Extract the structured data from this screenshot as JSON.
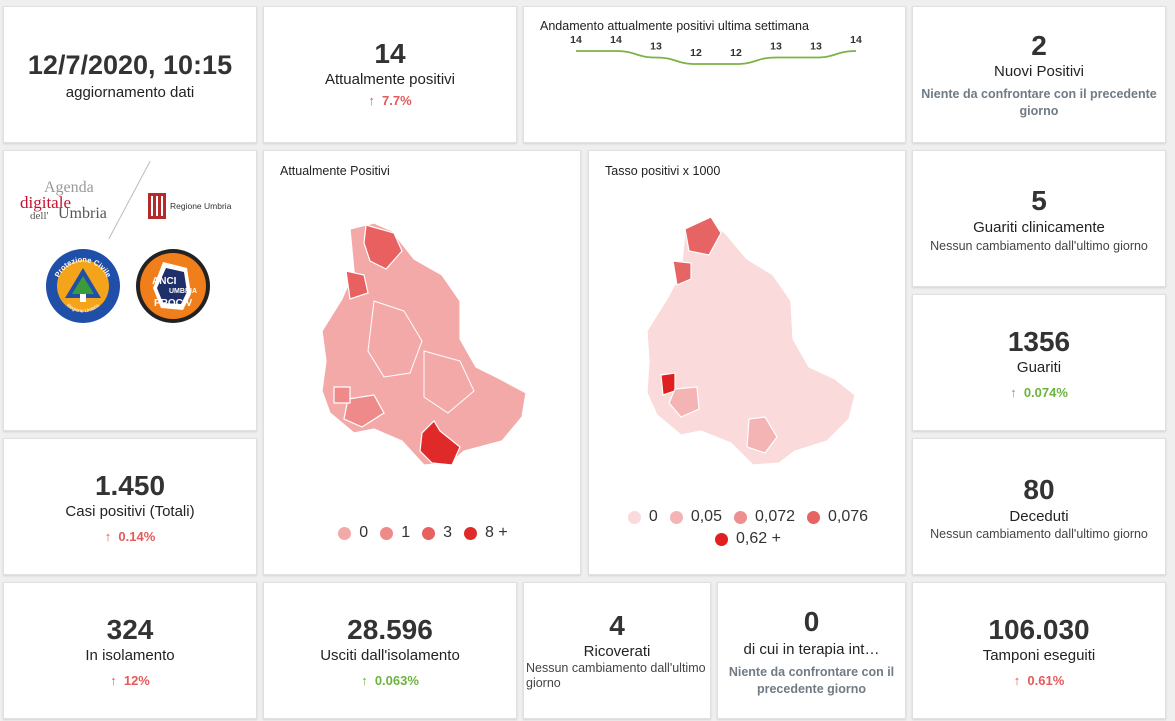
{
  "update": {
    "datetime": "12/7/2020, 10:15",
    "label": "aggiornamento dati"
  },
  "attualmente_positivi": {
    "value": "14",
    "label": "Attualmente positivi",
    "change": "7.7%"
  },
  "trend": {
    "title": "Andamento attualmente positivi ultima settimana",
    "chart_data": {
      "type": "line",
      "values": [
        14,
        14,
        13,
        12,
        12,
        13,
        13,
        14
      ],
      "labels": [
        "14",
        "14",
        "13",
        "12",
        "12",
        "13",
        "13",
        "14"
      ],
      "color": "#7cb342"
    }
  },
  "nuovi_positivi": {
    "value": "2",
    "label": "Nuovi Positivi",
    "note": "Niente da confrontare con il precedente giorno"
  },
  "logos": {
    "agenda_1": "Agenda",
    "agenda_2": "digitale",
    "agenda_3": "dell'",
    "agenda_4": "Umbria",
    "regione": "Regione Umbria",
    "protezione": "Protezione Civile",
    "protezione_sub": "Regione Umbria",
    "anci_1": "ANCI",
    "anci_2": "UMBRIA",
    "anci_3": "PROCIV"
  },
  "map_positivi": {
    "title": "Attualmente Positivi",
    "legend": [
      {
        "label": "0",
        "color": "#f4a9a9"
      },
      {
        "label": "1",
        "color": "#ee8a8a"
      },
      {
        "label": "3",
        "color": "#e86060"
      },
      {
        "label": "8 +",
        "color": "#e02a2a"
      }
    ]
  },
  "map_tasso": {
    "title": "Tasso positivi x 1000",
    "legend": [
      {
        "label": "0",
        "color": "#fadada"
      },
      {
        "label": "0,05",
        "color": "#f4b4b4"
      },
      {
        "label": "0,072",
        "color": "#ee8e8e"
      },
      {
        "label": "0,076",
        "color": "#e76464"
      },
      {
        "label": "0,62 +",
        "color": "#e02020"
      }
    ]
  },
  "guariti_clinicamente": {
    "value": "5",
    "label": "Guariti clinicamente",
    "note": "Nessun cambiamento dall'ultimo giorno"
  },
  "guariti": {
    "value": "1356",
    "label": "Guariti",
    "change": "0.074%"
  },
  "casi_totali": {
    "value": "1.450",
    "label": "Casi positivi (Totali)",
    "change": "0.14%"
  },
  "deceduti": {
    "value": "80",
    "label": "Deceduti",
    "note": "Nessun cambiamento dall'ultimo giorno"
  },
  "isolamento": {
    "value": "324",
    "label": "In isolamento",
    "change": "12%"
  },
  "usciti": {
    "value": "28.596",
    "label": "Usciti dall'isolamento",
    "change": "0.063%"
  },
  "ricoverati": {
    "value": "4",
    "label": "Ricoverati",
    "note": "Nessun cambiamento dall'ultimo giorno"
  },
  "terapia": {
    "value": "0",
    "label": "di cui in terapia int…",
    "note": "Niente da confrontare con il precedente giorno"
  },
  "tamponi": {
    "value": "106.030",
    "label": "Tamponi eseguiti",
    "change": "0.61%"
  }
}
